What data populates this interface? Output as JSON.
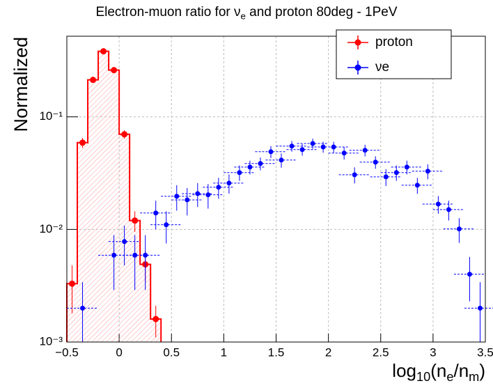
{
  "chart_data": {
    "type": "errorbar",
    "title": [
      {
        "text": "Electron-muon ratio for ν"
      },
      {
        "text": "e",
        "sub": true
      },
      {
        "text": " and proton 80deg - 1PeV"
      }
    ],
    "ylabel": "Normalized",
    "xlabel": [
      {
        "text": "log"
      },
      {
        "text": "10",
        "sub": true
      },
      {
        "text": "(n"
      },
      {
        "text": "e",
        "sub": true
      },
      {
        "text": "/n"
      },
      {
        "text": "m",
        "sub": true
      },
      {
        "text": ")"
      }
    ],
    "xlim": [
      -0.5,
      3.5
    ],
    "xticks": [
      {
        "value": -0.5,
        "label": "−0.5"
      },
      0,
      0.5,
      1,
      1.5,
      2,
      2.5,
      3,
      3.5
    ],
    "ylim": [
      0.001,
      0.52
    ],
    "yticks": [
      {
        "value": 0.001,
        "label": "10⁻³"
      },
      {
        "value": 0.01,
        "label": "10⁻²"
      },
      {
        "value": 0.1,
        "label": "10⁻¹"
      }
    ],
    "log_y": true,
    "grid": true,
    "legend": "top-right",
    "series": [
      {
        "name": "proton",
        "color": "#ff0000",
        "histogram": true,
        "x": [
          -0.45,
          -0.35,
          -0.25,
          -0.15,
          -0.05,
          0.05,
          0.15,
          0.25,
          0.35
        ],
        "values": [
          0.0033,
          0.059,
          0.213,
          0.382,
          0.26,
          0.07,
          0.012,
          0.0049,
          0.0016
        ],
        "errors": [
          0.0015,
          0.006,
          0.01,
          0.015,
          0.012,
          0.006,
          0.0025,
          0.0015,
          0.0005
        ]
      },
      {
        "name": "νe",
        "color": "#0000ff",
        "histogram": false,
        "x": [
          -0.35,
          -0.05,
          0.05,
          0.15,
          0.25,
          0.35,
          0.45,
          0.55,
          0.65,
          0.75,
          0.85,
          0.95,
          1.05,
          1.15,
          1.25,
          1.35,
          1.45,
          1.55,
          1.65,
          1.75,
          1.85,
          1.95,
          2.05,
          2.15,
          2.25,
          2.35,
          2.45,
          2.55,
          2.65,
          2.75,
          2.85,
          2.95,
          3.05,
          3.15,
          3.25,
          3.35,
          3.45
        ],
        "values": [
          0.002,
          0.0059,
          0.0078,
          0.0059,
          0.0059,
          0.014,
          0.011,
          0.0197,
          0.0183,
          0.0208,
          0.0203,
          0.0237,
          0.0258,
          0.032,
          0.0358,
          0.0385,
          0.049,
          0.0413,
          0.055,
          0.0512,
          0.058,
          0.054,
          0.054,
          0.0477,
          0.0306,
          0.0505,
          0.0396,
          0.0293,
          0.032,
          0.0358,
          0.0247,
          0.0329,
          0.0168,
          0.015,
          0.0101,
          0.004,
          0.002
        ],
        "errors": [
          0.0014,
          0.003,
          0.003,
          0.003,
          0.003,
          0.004,
          0.0035,
          0.005,
          0.005,
          0.005,
          0.005,
          0.005,
          0.005,
          0.005,
          0.005,
          0.005,
          0.006,
          0.006,
          0.006,
          0.006,
          0.006,
          0.006,
          0.006,
          0.006,
          0.005,
          0.006,
          0.005,
          0.005,
          0.005,
          0.005,
          0.004,
          0.005,
          0.003,
          0.003,
          0.0025,
          0.0017,
          0.0014
        ]
      }
    ]
  }
}
